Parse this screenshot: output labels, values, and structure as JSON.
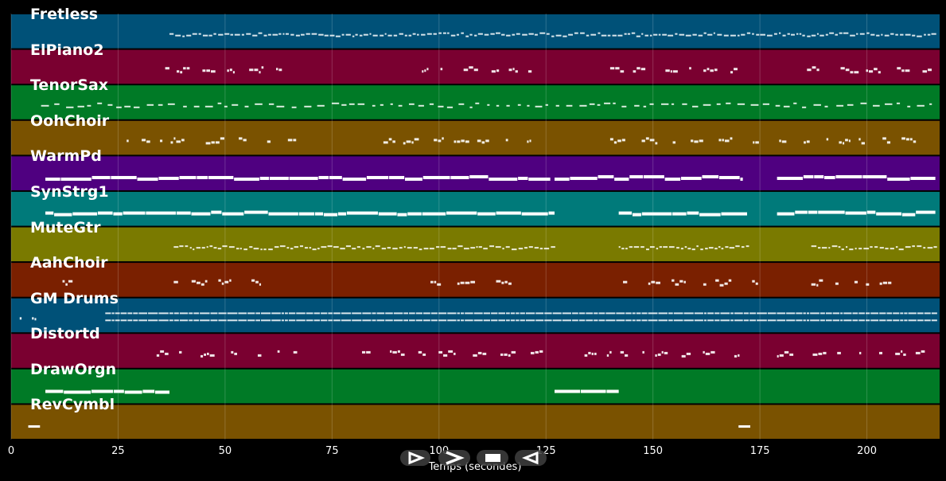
{
  "tracks": [
    {
      "name": "Fretless",
      "color": "#005178"
    },
    {
      "name": "ElPiano2",
      "color": "#7a0030"
    },
    {
      "name": "TenorSax",
      "color": "#007a26"
    },
    {
      "name": "OohChoir",
      "color": "#7a5200"
    },
    {
      "name": "WarmPd",
      "color": "#4f0080"
    },
    {
      "name": "SynStrg1",
      "color": "#007a7a"
    },
    {
      "name": "MuteGtr",
      "color": "#7a7a00"
    },
    {
      "name": "AahChoir",
      "color": "#7a2000"
    },
    {
      "name": "GM Drums",
      "color": "#005178"
    },
    {
      "name": "Distortd",
      "color": "#7a0030"
    },
    {
      "name": "DrawOrgn",
      "color": "#007a26"
    },
    {
      "name": "RevCymbl",
      "color": "#7a5200"
    }
  ],
  "chart_data": {
    "type": "piano-roll",
    "xlabel": "Temps (secondes)",
    "xlim": [
      0,
      217
    ],
    "xticks": [
      0,
      25,
      50,
      75,
      100,
      125,
      150,
      175,
      200
    ],
    "grid": true,
    "note_segments": [
      {
        "track": "Fretless",
        "start": 37,
        "end": 185,
        "density": "dense-small"
      },
      {
        "track": "Fretless",
        "start": 186,
        "end": 216,
        "density": "dense-small"
      },
      {
        "track": "ElPiano2",
        "start": 36,
        "end": 66,
        "density": "sparse"
      },
      {
        "track": "ElPiano2",
        "start": 96,
        "end": 126,
        "density": "sparse"
      },
      {
        "track": "ElPiano2",
        "start": 140,
        "end": 171,
        "density": "sparse"
      },
      {
        "track": "ElPiano2",
        "start": 186,
        "end": 216,
        "density": "sparse"
      },
      {
        "track": "TenorSax",
        "start": 7,
        "end": 216,
        "density": "medium"
      },
      {
        "track": "OohChoir",
        "start": 27,
        "end": 66,
        "density": "sparse"
      },
      {
        "track": "OohChoir",
        "start": 87,
        "end": 126,
        "density": "sparse"
      },
      {
        "track": "OohChoir",
        "start": 140,
        "end": 216,
        "density": "sparse"
      },
      {
        "track": "WarmPd",
        "start": 8,
        "end": 126,
        "density": "sustained"
      },
      {
        "track": "WarmPd",
        "start": 127,
        "end": 171,
        "density": "sustained"
      },
      {
        "track": "WarmPd",
        "start": 179,
        "end": 216,
        "density": "sustained"
      },
      {
        "track": "SynStrg1",
        "start": 8,
        "end": 127,
        "density": "sustained"
      },
      {
        "track": "SynStrg1",
        "start": 142,
        "end": 172,
        "density": "sustained"
      },
      {
        "track": "SynStrg1",
        "start": 179,
        "end": 216,
        "density": "sustained"
      },
      {
        "track": "MuteGtr",
        "start": 38,
        "end": 127,
        "density": "dense-small"
      },
      {
        "track": "MuteGtr",
        "start": 142,
        "end": 172,
        "density": "dense-small"
      },
      {
        "track": "MuteGtr",
        "start": 187,
        "end": 216,
        "density": "dense-small"
      },
      {
        "track": "AahChoir",
        "start": 12,
        "end": 14,
        "density": "sparse"
      },
      {
        "track": "AahChoir",
        "start": 38,
        "end": 58,
        "density": "sparse"
      },
      {
        "track": "AahChoir",
        "start": 98,
        "end": 118,
        "density": "sparse"
      },
      {
        "track": "AahChoir",
        "start": 143,
        "end": 176,
        "density": "sparse"
      },
      {
        "track": "AahChoir",
        "start": 187,
        "end": 207,
        "density": "sparse"
      },
      {
        "track": "GM Drums",
        "start": 2,
        "end": 6,
        "density": "sparse"
      },
      {
        "track": "GM Drums",
        "start": 22,
        "end": 216,
        "density": "drums"
      },
      {
        "track": "Distortd",
        "start": 34,
        "end": 66,
        "density": "sparse"
      },
      {
        "track": "Distortd",
        "start": 82,
        "end": 126,
        "density": "sparse"
      },
      {
        "track": "Distortd",
        "start": 134,
        "end": 172,
        "density": "sparse"
      },
      {
        "track": "Distortd",
        "start": 179,
        "end": 216,
        "density": "sparse"
      },
      {
        "track": "DrawOrgn",
        "start": 8,
        "end": 37,
        "density": "sustained"
      },
      {
        "track": "DrawOrgn",
        "start": 127,
        "end": 142,
        "density": "sustained"
      },
      {
        "track": "RevCymbl",
        "start": 4,
        "end": 6,
        "density": "single"
      },
      {
        "track": "RevCymbl",
        "start": 170,
        "end": 172,
        "density": "single"
      }
    ]
  },
  "controls": [
    {
      "name": "play-button",
      "icon": "play-icon"
    },
    {
      "name": "forward-button",
      "icon": "fast-forward-icon"
    },
    {
      "name": "stop-button",
      "icon": "stop-icon"
    },
    {
      "name": "rewind-button",
      "icon": "rewind-icon"
    }
  ]
}
